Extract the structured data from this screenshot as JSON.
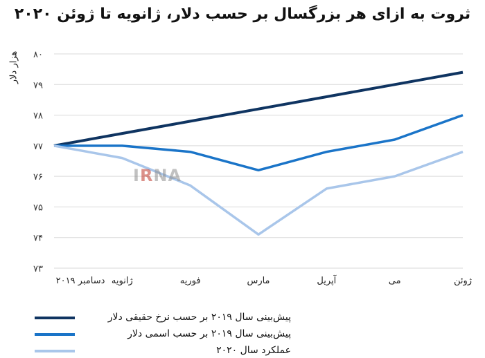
{
  "chart_data": {
    "type": "line",
    "title": "ثروت به ازای هر بزرگسال بر حسب دلار، ژانویه تا ژوئن ۲۰۲۰",
    "xlabel": "",
    "ylabel": "هزار دلار",
    "categories": [
      "دسامبر ۲۰۱۹",
      "ژانویه",
      "فوریه",
      "مارس",
      "آپریل",
      "می",
      "ژوئن"
    ],
    "y_ticks": [
      "۷۳",
      "۷۴",
      "۷۵",
      "۷۶",
      "۷۷",
      "۷۸",
      "۷۹",
      "۸۰"
    ],
    "ylim": [
      73,
      80
    ],
    "grid": true,
    "legend_position": "bottom-left",
    "series": [
      {
        "name": "پیش‌بینی سال ۲۰۱۹ بر حسب نرخ حقیقی دلار",
        "color": "#0f3461",
        "values": [
          77.0,
          77.4,
          77.8,
          78.2,
          78.6,
          79.0,
          79.4
        ]
      },
      {
        "name": "پیش‌بینی سال ۲۰۱۹ بر حسب اسمی دلار",
        "color": "#1a74c8",
        "values": [
          77.0,
          77.0,
          76.8,
          76.2,
          76.8,
          77.2,
          78.0
        ]
      },
      {
        "name": "عملکرد سال ۲۰۲۰",
        "color": "#a9c6ea",
        "values": [
          77.0,
          76.6,
          75.7,
          74.1,
          75.6,
          76.0,
          76.8
        ]
      }
    ]
  },
  "watermark": {
    "text_before": "I",
    "accent": "R",
    "text_after": "NA"
  }
}
